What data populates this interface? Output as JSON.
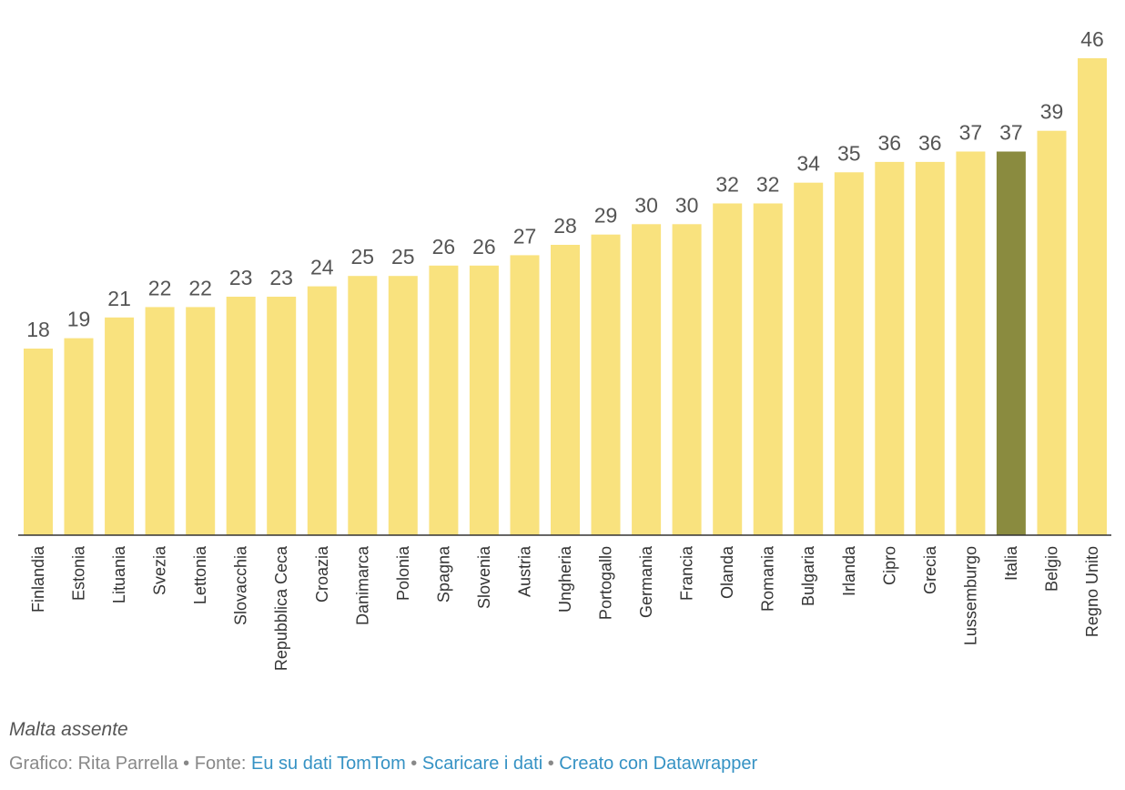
{
  "chart_data": {
    "type": "bar",
    "title": "",
    "xlabel": "",
    "ylabel": "",
    "ylim": [
      0,
      46
    ],
    "grid": false,
    "categories": [
      "Finlandia",
      "Estonia",
      "Lituania",
      "Svezia",
      "Lettonia",
      "Slovacchia",
      "Repubblica Ceca",
      "Croazia",
      "Danimarca",
      "Polonia",
      "Spagna",
      "Slovenia",
      "Austria",
      "Ungheria",
      "Portogallo",
      "Germania",
      "Francia",
      "Olanda",
      "Romania",
      "Bulgaria",
      "Irlanda",
      "Cipro",
      "Grecia",
      "Lussemburgo",
      "Italia",
      "Belgio",
      "Regno Unito"
    ],
    "values": [
      18,
      19,
      21,
      22,
      22,
      23,
      23,
      24,
      25,
      25,
      26,
      26,
      27,
      28,
      29,
      30,
      30,
      32,
      32,
      34,
      35,
      36,
      36,
      37,
      37,
      39,
      46
    ],
    "data_labels": [
      "18",
      "19",
      "21",
      "22",
      "22",
      "23",
      "23",
      "24",
      "25",
      "25",
      "26",
      "26",
      "27",
      "28",
      "29",
      "30",
      "30",
      "32",
      "32",
      "34",
      "35",
      "36",
      "36",
      "37",
      "37",
      "39",
      "46"
    ],
    "highlight": "Italia",
    "colors": {
      "bar": "#f9e27e",
      "highlight": "#8a8b3f",
      "axis": "#333333"
    }
  },
  "footer": {
    "note": "Malta assente",
    "credit_prefix": "Grafico: Rita Parrella",
    "separator": " • ",
    "source_label": "Fonte: ",
    "source_link": "Eu su dati TomTom",
    "download_link": "Scaricare i dati",
    "made_with_link": "Creato con Datawrapper"
  }
}
